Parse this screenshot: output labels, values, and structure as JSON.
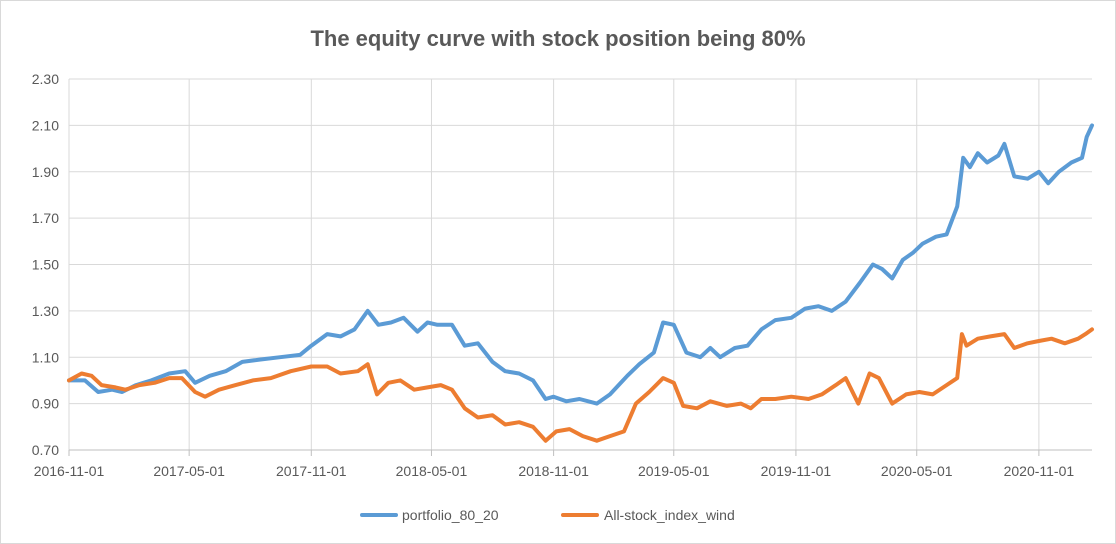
{
  "chart_data": {
    "type": "line",
    "title": "The equity curve with stock position being 80%",
    "xlabel": "",
    "ylabel": "",
    "x_range": [
      "2016-11-01",
      "2021-01-20"
    ],
    "ylim": [
      0.7,
      2.3
    ],
    "y_ticks": [
      "0.70",
      "0.90",
      "1.10",
      "1.30",
      "1.50",
      "1.70",
      "1.90",
      "2.10",
      "2.30"
    ],
    "x_ticks": [
      "2016-11-01",
      "2017-05-01",
      "2017-11-01",
      "2018-05-01",
      "2018-11-01",
      "2019-05-01",
      "2019-11-01",
      "2020-05-01",
      "2020-11-01"
    ],
    "grid": "vertical and horizontal",
    "legend_position": "bottom",
    "series": [
      {
        "name": "portfolio_80_20",
        "color": "#5b9bd5",
        "points": [
          [
            "2016-11-01",
            1.0
          ],
          [
            "2016-11-25",
            1.0
          ],
          [
            "2016-12-15",
            0.95
          ],
          [
            "2017-01-05",
            0.96
          ],
          [
            "2017-01-20",
            0.95
          ],
          [
            "2017-02-10",
            0.98
          ],
          [
            "2017-03-05",
            1.0
          ],
          [
            "2017-04-01",
            1.03
          ],
          [
            "2017-04-25",
            1.04
          ],
          [
            "2017-05-10",
            0.99
          ],
          [
            "2017-06-01",
            1.02
          ],
          [
            "2017-06-25",
            1.04
          ],
          [
            "2017-07-20",
            1.08
          ],
          [
            "2017-08-15",
            1.09
          ],
          [
            "2017-09-15",
            1.1
          ],
          [
            "2017-10-15",
            1.11
          ],
          [
            "2017-11-01",
            1.15
          ],
          [
            "2017-11-25",
            1.2
          ],
          [
            "2017-12-15",
            1.19
          ],
          [
            "2018-01-05",
            1.22
          ],
          [
            "2018-01-25",
            1.3
          ],
          [
            "2018-02-10",
            1.24
          ],
          [
            "2018-03-01",
            1.25
          ],
          [
            "2018-03-20",
            1.27
          ],
          [
            "2018-04-10",
            1.21
          ],
          [
            "2018-04-25",
            1.25
          ],
          [
            "2018-05-10",
            1.24
          ],
          [
            "2018-06-01",
            1.24
          ],
          [
            "2018-06-20",
            1.15
          ],
          [
            "2018-07-10",
            1.16
          ],
          [
            "2018-08-01",
            1.08
          ],
          [
            "2018-08-20",
            1.04
          ],
          [
            "2018-09-10",
            1.03
          ],
          [
            "2018-10-01",
            1.0
          ],
          [
            "2018-10-20",
            0.92
          ],
          [
            "2018-11-01",
            0.93
          ],
          [
            "2018-11-20",
            0.91
          ],
          [
            "2018-12-10",
            0.92
          ],
          [
            "2019-01-05",
            0.9
          ],
          [
            "2019-01-25",
            0.94
          ],
          [
            "2019-02-20",
            1.02
          ],
          [
            "2019-03-10",
            1.07
          ],
          [
            "2019-04-01",
            1.12
          ],
          [
            "2019-04-15",
            1.25
          ],
          [
            "2019-05-01",
            1.24
          ],
          [
            "2019-05-20",
            1.12
          ],
          [
            "2019-06-10",
            1.1
          ],
          [
            "2019-06-25",
            1.14
          ],
          [
            "2019-07-10",
            1.1
          ],
          [
            "2019-08-01",
            1.14
          ],
          [
            "2019-08-20",
            1.15
          ],
          [
            "2019-09-10",
            1.22
          ],
          [
            "2019-10-01",
            1.26
          ],
          [
            "2019-10-25",
            1.27
          ],
          [
            "2019-11-15",
            1.31
          ],
          [
            "2019-12-05",
            1.32
          ],
          [
            "2019-12-25",
            1.3
          ],
          [
            "2020-01-15",
            1.34
          ],
          [
            "2020-02-05",
            1.42
          ],
          [
            "2020-02-25",
            1.5
          ],
          [
            "2020-03-10",
            1.48
          ],
          [
            "2020-03-25",
            1.44
          ],
          [
            "2020-04-10",
            1.52
          ],
          [
            "2020-04-25",
            1.55
          ],
          [
            "2020-05-10",
            1.59
          ],
          [
            "2020-05-30",
            1.62
          ],
          [
            "2020-06-15",
            1.63
          ],
          [
            "2020-07-01",
            1.75
          ],
          [
            "2020-07-10",
            1.96
          ],
          [
            "2020-07-20",
            1.92
          ],
          [
            "2020-08-01",
            1.98
          ],
          [
            "2020-08-15",
            1.94
          ],
          [
            "2020-09-01",
            1.97
          ],
          [
            "2020-09-10",
            2.02
          ],
          [
            "2020-09-25",
            1.88
          ],
          [
            "2020-10-15",
            1.87
          ],
          [
            "2020-11-01",
            1.9
          ],
          [
            "2020-11-15",
            1.85
          ],
          [
            "2020-12-01",
            1.9
          ],
          [
            "2020-12-20",
            1.94
          ],
          [
            "2021-01-05",
            1.96
          ],
          [
            "2021-01-12",
            2.05
          ],
          [
            "2021-01-20",
            2.1
          ]
        ]
      },
      {
        "name": "All-stock_index_wind",
        "color": "#ed7d31",
        "points": [
          [
            "2016-11-01",
            1.0
          ],
          [
            "2016-11-20",
            1.03
          ],
          [
            "2016-12-05",
            1.02
          ],
          [
            "2016-12-20",
            0.98
          ],
          [
            "2017-01-10",
            0.97
          ],
          [
            "2017-01-25",
            0.96
          ],
          [
            "2017-02-15",
            0.98
          ],
          [
            "2017-03-10",
            0.99
          ],
          [
            "2017-04-01",
            1.01
          ],
          [
            "2017-04-20",
            1.01
          ],
          [
            "2017-05-10",
            0.95
          ],
          [
            "2017-05-25",
            0.93
          ],
          [
            "2017-06-15",
            0.96
          ],
          [
            "2017-07-10",
            0.98
          ],
          [
            "2017-08-05",
            1.0
          ],
          [
            "2017-09-01",
            1.01
          ],
          [
            "2017-10-01",
            1.04
          ],
          [
            "2017-11-01",
            1.06
          ],
          [
            "2017-11-25",
            1.06
          ],
          [
            "2017-12-15",
            1.03
          ],
          [
            "2018-01-10",
            1.04
          ],
          [
            "2018-01-25",
            1.07
          ],
          [
            "2018-02-08",
            0.94
          ],
          [
            "2018-02-25",
            0.99
          ],
          [
            "2018-03-15",
            1.0
          ],
          [
            "2018-04-05",
            0.96
          ],
          [
            "2018-04-25",
            0.97
          ],
          [
            "2018-05-15",
            0.98
          ],
          [
            "2018-06-01",
            0.96
          ],
          [
            "2018-06-20",
            0.88
          ],
          [
            "2018-07-10",
            0.84
          ],
          [
            "2018-08-01",
            0.85
          ],
          [
            "2018-08-20",
            0.81
          ],
          [
            "2018-09-10",
            0.82
          ],
          [
            "2018-10-01",
            0.8
          ],
          [
            "2018-10-20",
            0.74
          ],
          [
            "2018-11-05",
            0.78
          ],
          [
            "2018-11-25",
            0.79
          ],
          [
            "2018-12-15",
            0.76
          ],
          [
            "2019-01-05",
            0.74
          ],
          [
            "2019-01-25",
            0.76
          ],
          [
            "2019-02-15",
            0.78
          ],
          [
            "2019-03-05",
            0.9
          ],
          [
            "2019-03-25",
            0.95
          ],
          [
            "2019-04-15",
            1.01
          ],
          [
            "2019-05-01",
            0.99
          ],
          [
            "2019-05-15",
            0.89
          ],
          [
            "2019-06-05",
            0.88
          ],
          [
            "2019-06-25",
            0.91
          ],
          [
            "2019-07-20",
            0.89
          ],
          [
            "2019-08-10",
            0.9
          ],
          [
            "2019-08-25",
            0.88
          ],
          [
            "2019-09-10",
            0.92
          ],
          [
            "2019-10-01",
            0.92
          ],
          [
            "2019-10-25",
            0.93
          ],
          [
            "2019-11-20",
            0.92
          ],
          [
            "2019-12-10",
            0.94
          ],
          [
            "2019-12-31",
            0.98
          ],
          [
            "2020-01-15",
            1.01
          ],
          [
            "2020-02-03",
            0.9
          ],
          [
            "2020-02-20",
            1.03
          ],
          [
            "2020-03-05",
            1.01
          ],
          [
            "2020-03-25",
            0.9
          ],
          [
            "2020-04-15",
            0.94
          ],
          [
            "2020-05-05",
            0.95
          ],
          [
            "2020-05-25",
            0.94
          ],
          [
            "2020-06-15",
            0.98
          ],
          [
            "2020-07-01",
            1.01
          ],
          [
            "2020-07-08",
            1.2
          ],
          [
            "2020-07-15",
            1.15
          ],
          [
            "2020-08-01",
            1.18
          ],
          [
            "2020-08-20",
            1.19
          ],
          [
            "2020-09-10",
            1.2
          ],
          [
            "2020-09-25",
            1.14
          ],
          [
            "2020-10-15",
            1.16
          ],
          [
            "2020-11-01",
            1.17
          ],
          [
            "2020-11-20",
            1.18
          ],
          [
            "2020-12-10",
            1.16
          ],
          [
            "2020-12-30",
            1.18
          ],
          [
            "2021-01-10",
            1.2
          ],
          [
            "2021-01-20",
            1.22
          ]
        ]
      }
    ]
  }
}
